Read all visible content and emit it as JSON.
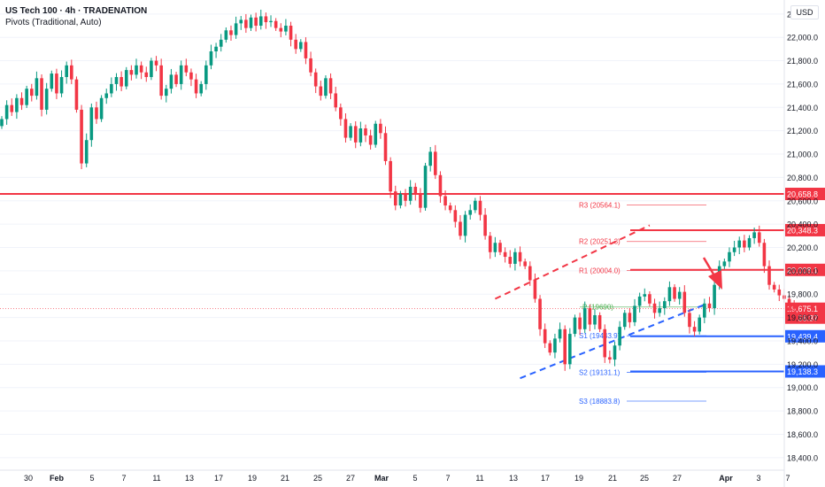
{
  "header": {
    "title": "US Tech 100 · 4h · TRADENATION",
    "indicator": "Pivots (Traditional, Auto)"
  },
  "currency_button": "USD",
  "colors": {
    "up": "#089981",
    "down": "#f23645",
    "resistance": "#f23645",
    "support": "#2962ff",
    "pivot": "#4caf50"
  },
  "chart_data": {
    "type": "candlestick",
    "title": "US Tech 100 · 4h · TRADENATION",
    "ylim": [
      18300,
      22320
    ],
    "y_ticks": [
      22200,
      22000,
      21800,
      21600,
      21400,
      21200,
      21000,
      20800,
      20600,
      20400,
      20200,
      20000,
      19800,
      19600,
      19400,
      19200,
      19000,
      18800,
      18600,
      18400
    ],
    "y_tick_labels": [
      "22,200.0",
      "22,000.0",
      "21,800.0",
      "21,600.0",
      "21,400.0",
      "21,200.0",
      "21,000.0",
      "20,800.0",
      "20,600.0",
      "20,400.0",
      "20,200.0",
      "20,000.0",
      "19,800.0",
      "19,600.0",
      "19,400.0",
      "19,200.0",
      "19,000.0",
      "18,800.0",
      "18,600.0",
      "18,400.0"
    ],
    "x_tick_labels": [
      "30",
      "Feb",
      "5",
      "7",
      "11",
      "13",
      "17",
      "19",
      "21",
      "25",
      "27",
      "Mar",
      "5",
      "7",
      "11",
      "13",
      "17",
      "19",
      "21",
      "25",
      "27",
      "Apr",
      "3",
      "7"
    ],
    "close_path": [
      21300,
      21420,
      21360,
      21480,
      21420,
      21560,
      21500,
      21650,
      21380,
      21560,
      21690,
      21520,
      21660,
      21760,
      21640,
      21380,
      20920,
      21120,
      21400,
      21300,
      21480,
      21520,
      21600,
      21660,
      21580,
      21720,
      21680,
      21760,
      21700,
      21660,
      21800,
      21760,
      21500,
      21560,
      21680,
      21600,
      21760,
      21700,
      21640,
      21520,
      21600,
      21760,
      21880,
      21920,
      21980,
      22060,
      22020,
      22120,
      22150,
      22080,
      22170,
      22100,
      22180,
      22130,
      22140,
      22080,
      22050,
      22100,
      21980,
      21900,
      21960,
      21820,
      21700,
      21580,
      21500,
      21650,
      21520,
      21400,
      21300,
      21140,
      21240,
      21100,
      21220,
      21160,
      21080,
      21260,
      21180,
      20940,
      20680,
      20560,
      20660,
      20600,
      20720,
      20660,
      20540,
      20900,
      21020,
      20820,
      20640,
      20560,
      20520,
      20420,
      20300,
      20480,
      20520,
      20600,
      20480,
      20300,
      20160,
      20240,
      20160,
      20120,
      20060,
      20160,
      20080,
      20040,
      19920,
      19760,
      19500,
      19380,
      19300,
      19420,
      19500,
      19200,
      19460,
      19600,
      19500,
      19680,
      19540,
      19620,
      19500,
      19260,
      19240,
      19360,
      19520,
      19640,
      19560,
      19700,
      19780,
      19800,
      19720,
      19640,
      19680,
      19740,
      19860,
      19760,
      19820,
      19640,
      19520,
      19480,
      19600,
      19720,
      19680,
      19880,
      20040,
      20080,
      20160,
      20200,
      20260,
      20200,
      20280,
      20330,
      20240,
      20040,
      19880,
      19840,
      19790,
      19760,
      19700,
      19675
    ],
    "last_price": 19675.1,
    "last_price_label": "19,675.1",
    "countdown": "56:37",
    "pivots": [
      {
        "name": "R3",
        "value": 20564.1,
        "label": "R3 (20564.1)"
      },
      {
        "name": "R2",
        "value": 20251.3,
        "label": "R2 (20251.3)"
      },
      {
        "name": "R1",
        "value": 20004.0,
        "label": "R1 (20004.0)"
      },
      {
        "name": "P",
        "value": 19690.0,
        "label": "P (19690)"
      },
      {
        "name": "S1",
        "value": 19443.9,
        "label": "S1 (19443.9)"
      },
      {
        "name": "S2",
        "value": 19131.1,
        "label": "S2 (19131.1)"
      },
      {
        "name": "S3",
        "value": 18883.8,
        "label": "S3 (18883.8)"
      }
    ],
    "horizontal_levels": [
      {
        "value": 20658.8,
        "label": "20,658.8",
        "color": "#f23645"
      },
      {
        "value": 20348.3,
        "label": "20,348.3",
        "color": "#f23645"
      },
      {
        "value": 20008.1,
        "label": "20,008.1",
        "color": "#f23645"
      },
      {
        "value": 19439.4,
        "label": "19,439.4",
        "color": "#2962ff"
      },
      {
        "value": 19138.3,
        "label": "19,138.3",
        "color": "#2962ff"
      }
    ],
    "channel": {
      "upper": {
        "from": [
          99,
          19760
        ],
        "to": [
          130,
          20390
        ]
      },
      "lower": {
        "from": [
          104,
          19080
        ],
        "to": [
          141,
          19710
        ]
      }
    },
    "arrow": "down"
  }
}
